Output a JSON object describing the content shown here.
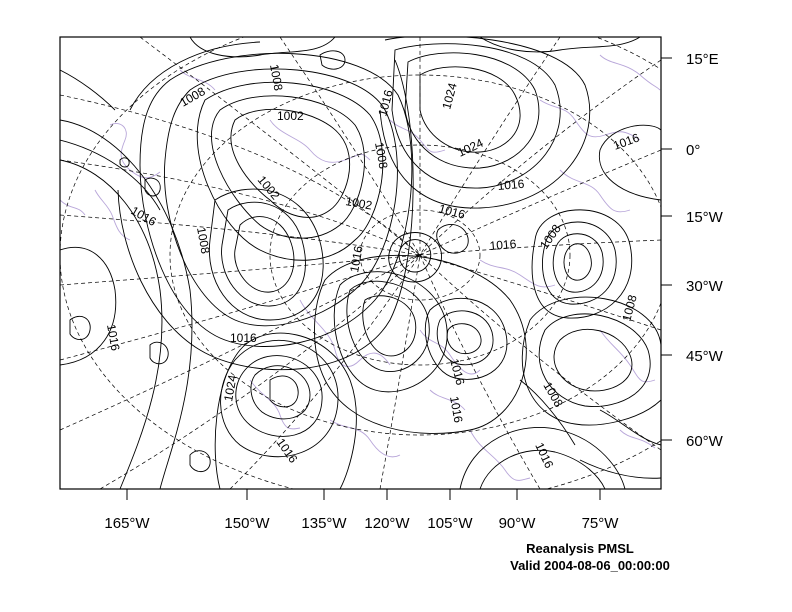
{
  "map": {
    "x_axis_labels": [
      "165°W",
      "150°W",
      "135°W",
      "120°W",
      "105°W",
      "90°W",
      "75°W"
    ],
    "y_axis_labels": [
      "15°E",
      "0°",
      "15°W",
      "30°W",
      "45°W",
      "60°W"
    ],
    "contour_labels": [
      "1008",
      "1008",
      "1002",
      "1024",
      "1016",
      "1008",
      "1024",
      "1016",
      "1016",
      "1016",
      "1002",
      "1002",
      "1016",
      "1008",
      "1016",
      "1016",
      "1008",
      "1016",
      "1016",
      "1016",
      "1008",
      "1024",
      "1016",
      "1016",
      "1008",
      "1016"
    ],
    "colors": {
      "contour": "#000000",
      "coastline": "#b8a6d9",
      "frame": "#000000"
    }
  },
  "caption": {
    "line1": "Reanalysis PMSL",
    "line2": "Valid 2004-08-06_00:00:00"
  }
}
